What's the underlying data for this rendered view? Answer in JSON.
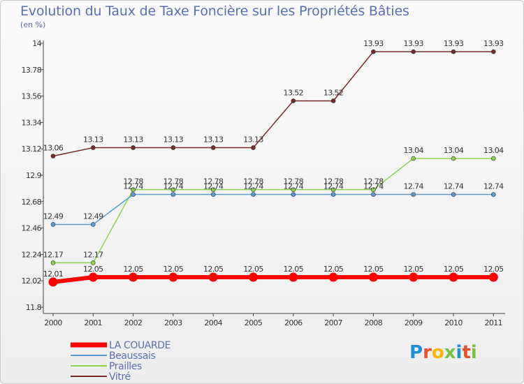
{
  "header": {
    "title": "Evolution du Taux de Taxe Foncière sur les Propriétés Bâties",
    "subtitle": "(en %)"
  },
  "logo": {
    "text": "Proxiti",
    "colors": [
      "#1f8fd8",
      "#e84f2a",
      "#ffb400",
      "#7ac143",
      "#1f8fd8",
      "#e84f2a",
      "#7ac143"
    ]
  },
  "chart_data": {
    "type": "line",
    "title": "Evolution du Taux de Taxe Foncière sur les Propriétés Bâties",
    "ylabel": "(en %)",
    "xlabel": "",
    "categories": [
      "2000",
      "2001",
      "2002",
      "2003",
      "2004",
      "2005",
      "2006",
      "2007",
      "2008",
      "2009",
      "2010",
      "2011"
    ],
    "ylim": [
      11.8,
      14
    ],
    "yticks": [
      11.8,
      12.02,
      12.24,
      12.46,
      12.68,
      12.9,
      13.12,
      13.34,
      13.56,
      13.78,
      14
    ],
    "ytick_labels": [
      "11.8",
      "12.02",
      "12.24",
      "12.46",
      "12.68",
      "12.9",
      "13.12",
      "13.34",
      "13.56",
      "13.78",
      "14"
    ],
    "grid": false,
    "legend_position": "bottom-left",
    "series": [
      {
        "name": "LA COUARDE",
        "color": "#ff0000",
        "values": [
          12.01,
          12.05,
          12.05,
          12.05,
          12.05,
          12.05,
          12.05,
          12.05,
          12.05,
          12.05,
          12.05,
          12.05
        ],
        "labels": [
          "12.01",
          "12.05",
          "12.05",
          "12.05",
          "12.05",
          "12.05",
          "12.05",
          "12.05",
          "12.05",
          "12.05",
          "12.05",
          "12.05"
        ]
      },
      {
        "name": "Beaussais",
        "color": "#5b9bd5",
        "values": [
          12.49,
          12.49,
          12.74,
          12.74,
          12.74,
          12.74,
          12.74,
          12.74,
          12.74,
          12.74,
          12.74,
          12.74
        ],
        "labels": [
          "12.49",
          "12.49",
          "12.74",
          "12.74",
          "12.74",
          "12.74",
          "12.74",
          "12.74",
          "12.74",
          "12.74",
          "12.74",
          "12.74"
        ]
      },
      {
        "name": "Prailles",
        "color": "#8fd14f",
        "values": [
          12.17,
          12.17,
          12.78,
          12.78,
          12.78,
          12.78,
          12.78,
          12.78,
          12.78,
          13.04,
          13.04,
          13.04
        ],
        "labels": [
          "12.17",
          "12.17",
          "12.78",
          "12.78",
          "12.78",
          "12.78",
          "12.78",
          "12.78",
          "12.78",
          "13.04",
          "13.04",
          "13.04"
        ]
      },
      {
        "name": "Vitré",
        "color": "#7a2a2a",
        "values": [
          13.06,
          13.13,
          13.13,
          13.13,
          13.13,
          13.13,
          13.52,
          13.52,
          13.93,
          13.93,
          13.93,
          13.93
        ],
        "labels": [
          "13.06",
          "13.13",
          "13.13",
          "13.13",
          "13.13",
          "13.13",
          "13.52",
          "13.52",
          "13.93",
          "13.93",
          "13.93",
          "13.93"
        ]
      }
    ]
  }
}
